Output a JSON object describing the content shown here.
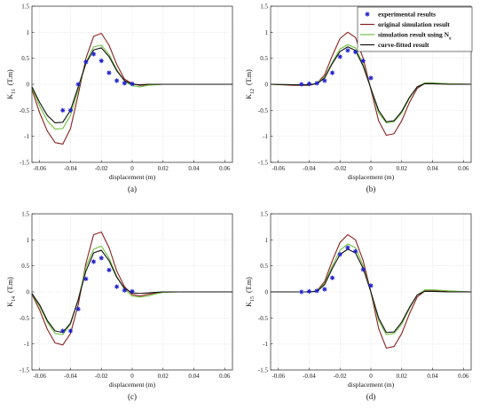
{
  "legend": {
    "entries": [
      {
        "label": "experimental results",
        "sub": "",
        "color": "#1f1fcf",
        "kind": "marker"
      },
      {
        "label": "original simulation result",
        "sub": "",
        "color": "#8b2020",
        "kind": "line"
      },
      {
        "label": "simulation result using N",
        "sub": "e",
        "color": "#6fbf3f",
        "kind": "line"
      },
      {
        "label": "curve-fitted result",
        "sub": "",
        "color": "#101010",
        "kind": "line"
      }
    ]
  },
  "chart_data": [
    {
      "type": "line",
      "panel_label": "(a)",
      "ylabel": "K",
      "ylabel_sub": "11",
      "ylabel_unit": "(T.m)",
      "xlabel": "displacement (m)",
      "xlim": [
        -0.065,
        0.065
      ],
      "ylim": [
        -1.5,
        1.5
      ],
      "xticks": [
        -0.06,
        -0.04,
        -0.02,
        0,
        0.02,
        0.04,
        0.06
      ],
      "yticks": [
        -1.5,
        -1,
        -0.5,
        0,
        0.5,
        1,
        1.5
      ],
      "xtick_labels": [
        "-0.06",
        "-0.04",
        "-0.02",
        "0",
        "0.02",
        "0.04",
        "0.06"
      ],
      "ytick_labels": [
        "-1.5",
        "-1",
        "-0.5",
        "0",
        "0.5",
        "1",
        "1.5"
      ],
      "grid": true,
      "experimental": {
        "x": [
          -0.045,
          -0.04,
          -0.035,
          -0.03,
          -0.025,
          -0.02,
          -0.015,
          -0.01,
          -0.005,
          0
        ],
        "y": [
          -0.5,
          -0.5,
          0,
          0.43,
          0.58,
          0.45,
          0.22,
          0.07,
          0.02,
          0.01
        ]
      },
      "series": [
        {
          "color": "#8b2020",
          "x": [
            -0.065,
            -0.06,
            -0.055,
            -0.05,
            -0.045,
            -0.04,
            -0.035,
            -0.03,
            -0.025,
            -0.02,
            -0.015,
            -0.01,
            -0.005,
            0,
            0.005,
            0.01,
            0.02,
            0.03,
            0.04,
            0.05,
            0.065
          ],
          "y": [
            -0.1,
            -0.55,
            -0.9,
            -1.12,
            -1.15,
            -0.85,
            -0.2,
            0.5,
            0.92,
            0.98,
            0.75,
            0.38,
            0.1,
            0.01,
            -0.02,
            -0.01,
            0,
            0,
            0,
            0,
            0
          ]
        },
        {
          "color": "#6fbf3f",
          "x": [
            -0.065,
            -0.06,
            -0.055,
            -0.05,
            -0.045,
            -0.04,
            -0.035,
            -0.03,
            -0.025,
            -0.02,
            -0.015,
            -0.01,
            -0.005,
            0,
            0.005,
            0.01,
            0.02,
            0.03,
            0.04,
            0.05,
            0.065
          ],
          "y": [
            -0.07,
            -0.42,
            -0.7,
            -0.86,
            -0.85,
            -0.6,
            -0.1,
            0.42,
            0.72,
            0.75,
            0.57,
            0.28,
            0.06,
            -0.03,
            -0.05,
            -0.02,
            0,
            0,
            0,
            0,
            0
          ]
        },
        {
          "color": "#101010",
          "x": [
            -0.065,
            -0.06,
            -0.055,
            -0.05,
            -0.045,
            -0.04,
            -0.035,
            -0.03,
            -0.025,
            -0.02,
            -0.015,
            -0.01,
            -0.005,
            0,
            0.005,
            0.01,
            0.02,
            0.03,
            0.04,
            0.05,
            0.065
          ],
          "y": [
            -0.05,
            -0.35,
            -0.6,
            -0.74,
            -0.73,
            -0.5,
            -0.05,
            0.4,
            0.66,
            0.7,
            0.53,
            0.26,
            0.07,
            0.0,
            -0.01,
            0,
            0,
            0,
            0,
            0,
            0
          ]
        }
      ]
    },
    {
      "type": "line",
      "panel_label": "(b)",
      "ylabel": "K",
      "ylabel_sub": "12",
      "ylabel_unit": "(T.m)",
      "xlabel": "displacement (m)",
      "xlim": [
        -0.065,
        0.065
      ],
      "ylim": [
        -1.5,
        1.5
      ],
      "xticks": [
        -0.06,
        -0.04,
        -0.02,
        0,
        0.02,
        0.04,
        0.06
      ],
      "yticks": [
        -1.5,
        -1,
        -0.5,
        0,
        0.5,
        1,
        1.5
      ],
      "xtick_labels": [
        "-0.06",
        "-0.04",
        "-0.02",
        "0",
        "0.02",
        "0.04",
        "0.06"
      ],
      "ytick_labels": [
        "-1.5",
        "-1",
        "-0.5",
        "0",
        "0.5",
        "1",
        "1.5"
      ],
      "grid": true,
      "experimental": {
        "x": [
          -0.045,
          -0.04,
          -0.035,
          -0.03,
          -0.025,
          -0.02,
          -0.015,
          -0.01,
          -0.005,
          0
        ],
        "y": [
          0,
          0.01,
          0.02,
          0.07,
          0.22,
          0.53,
          0.65,
          0.62,
          0.45,
          0.12
        ]
      },
      "series": [
        {
          "color": "#8b2020",
          "x": [
            -0.065,
            -0.05,
            -0.04,
            -0.035,
            -0.03,
            -0.025,
            -0.02,
            -0.015,
            -0.01,
            -0.005,
            0,
            0.005,
            0.01,
            0.015,
            0.02,
            0.025,
            0.03,
            0.035,
            0.04,
            0.05,
            0.065
          ],
          "y": [
            0,
            -0.02,
            -0.02,
            0.02,
            0.18,
            0.55,
            0.88,
            1.0,
            0.9,
            0.5,
            -0.1,
            -0.7,
            -0.98,
            -0.95,
            -0.7,
            -0.35,
            -0.08,
            0.02,
            0.02,
            0.01,
            0
          ]
        },
        {
          "color": "#6fbf3f",
          "x": [
            -0.065,
            -0.05,
            -0.04,
            -0.035,
            -0.03,
            -0.025,
            -0.02,
            -0.015,
            -0.01,
            -0.005,
            0,
            0.005,
            0.01,
            0.015,
            0.02,
            0.025,
            0.03,
            0.035,
            0.04,
            0.05,
            0.065
          ],
          "y": [
            0,
            -0.01,
            -0.01,
            0.02,
            0.14,
            0.42,
            0.68,
            0.76,
            0.7,
            0.38,
            -0.08,
            -0.55,
            -0.74,
            -0.72,
            -0.55,
            -0.27,
            -0.05,
            0.03,
            0.03,
            0.01,
            0
          ]
        },
        {
          "color": "#101010",
          "x": [
            -0.065,
            -0.05,
            -0.04,
            -0.035,
            -0.03,
            -0.025,
            -0.02,
            -0.015,
            -0.01,
            -0.005,
            0,
            0.005,
            0.01,
            0.015,
            0.02,
            0.025,
            0.03,
            0.035,
            0.04,
            0.05,
            0.065
          ],
          "y": [
            0,
            -0.01,
            -0.01,
            0.01,
            0.12,
            0.4,
            0.63,
            0.72,
            0.65,
            0.35,
            -0.08,
            -0.5,
            -0.72,
            -0.7,
            -0.52,
            -0.25,
            -0.05,
            0.01,
            0.01,
            0,
            0
          ]
        }
      ]
    },
    {
      "type": "line",
      "panel_label": "(c)",
      "ylabel": "K",
      "ylabel_sub": "14",
      "ylabel_unit": "(T.m)",
      "xlabel": "displacement (m)",
      "xlim": [
        -0.065,
        0.065
      ],
      "ylim": [
        -1.5,
        1.5
      ],
      "xticks": [
        -0.06,
        -0.04,
        -0.02,
        0,
        0.02,
        0.04,
        0.06
      ],
      "yticks": [
        -1.5,
        -1,
        -0.5,
        0,
        0.5,
        1,
        1.5
      ],
      "xtick_labels": [
        "-0.06",
        "-0.04",
        "-0.02",
        "0",
        "0.02",
        "0.04",
        "0.06"
      ],
      "ytick_labels": [
        "-1.5",
        "-1",
        "-0.5",
        "0",
        "0.5",
        "1",
        "1.5"
      ],
      "grid": true,
      "experimental": {
        "x": [
          -0.045,
          -0.04,
          -0.035,
          -0.03,
          -0.025,
          -0.02,
          -0.015,
          -0.01,
          -0.005,
          0
        ],
        "y": [
          -0.75,
          -0.75,
          -0.33,
          0.25,
          0.58,
          0.65,
          0.42,
          0.1,
          0.03,
          0.01
        ]
      },
      "series": [
        {
          "color": "#8b2020",
          "x": [
            -0.065,
            -0.06,
            -0.055,
            -0.05,
            -0.045,
            -0.04,
            -0.035,
            -0.03,
            -0.025,
            -0.02,
            -0.015,
            -0.01,
            -0.005,
            0,
            0.005,
            0.01,
            0.015,
            0.02,
            0.03,
            0.04,
            0.065
          ],
          "y": [
            -0.05,
            -0.35,
            -0.72,
            -0.98,
            -1.02,
            -0.8,
            -0.25,
            0.55,
            1.1,
            1.15,
            0.85,
            0.4,
            0.1,
            -0.05,
            -0.08,
            -0.05,
            -0.02,
            0,
            0,
            0,
            0
          ]
        },
        {
          "color": "#6fbf3f",
          "x": [
            -0.065,
            -0.06,
            -0.055,
            -0.05,
            -0.045,
            -0.04,
            -0.035,
            -0.03,
            -0.025,
            -0.02,
            -0.015,
            -0.01,
            -0.005,
            0,
            0.005,
            0.01,
            0.015,
            0.02,
            0.03,
            0.04,
            0.065
          ],
          "y": [
            -0.04,
            -0.28,
            -0.58,
            -0.8,
            -0.82,
            -0.62,
            -0.15,
            0.48,
            0.82,
            0.88,
            0.65,
            0.3,
            0.05,
            -0.08,
            -0.1,
            -0.08,
            -0.04,
            -0.01,
            0,
            0,
            0
          ]
        },
        {
          "color": "#101010",
          "x": [
            -0.065,
            -0.06,
            -0.055,
            -0.05,
            -0.045,
            -0.04,
            -0.035,
            -0.03,
            -0.025,
            -0.02,
            -0.015,
            -0.01,
            -0.005,
            0,
            0.005,
            0.01,
            0.015,
            0.02,
            0.03,
            0.04,
            0.065
          ],
          "y": [
            -0.03,
            -0.25,
            -0.55,
            -0.75,
            -0.78,
            -0.6,
            -0.15,
            0.4,
            0.75,
            0.8,
            0.6,
            0.28,
            0.07,
            -0.02,
            -0.03,
            -0.02,
            -0.01,
            0,
            0,
            0,
            0
          ]
        }
      ]
    },
    {
      "type": "line",
      "panel_label": "(d)",
      "ylabel": "K",
      "ylabel_sub": "15",
      "ylabel_unit": "(T.m)",
      "xlabel": "displacement (m)",
      "xlim": [
        -0.065,
        0.065
      ],
      "ylim": [
        -1.5,
        1.5
      ],
      "xticks": [
        -0.06,
        -0.04,
        -0.02,
        0,
        0.02,
        0.04,
        0.06
      ],
      "yticks": [
        -1.5,
        -1,
        -0.5,
        0,
        0.5,
        1,
        1.5
      ],
      "xtick_labels": [
        "-0.06",
        "-0.04",
        "-0.02",
        "0",
        "0.02",
        "0.04",
        "0.06"
      ],
      "ytick_labels": [
        "-1.5",
        "-1",
        "-0.5",
        "0",
        "0.5",
        "1",
        "1.5"
      ],
      "grid": true,
      "experimental": {
        "x": [
          -0.045,
          -0.04,
          -0.035,
          -0.03,
          -0.025,
          -0.02,
          -0.015,
          -0.01,
          -0.005,
          0
        ],
        "y": [
          0,
          0.01,
          0.02,
          0.05,
          0.27,
          0.72,
          0.85,
          0.78,
          0.43,
          0.12
        ]
      },
      "series": [
        {
          "color": "#8b2020",
          "x": [
            -0.065,
            -0.05,
            -0.04,
            -0.035,
            -0.03,
            -0.025,
            -0.02,
            -0.015,
            -0.01,
            -0.005,
            0,
            0.005,
            0.01,
            0.015,
            0.02,
            0.025,
            0.03,
            0.035,
            0.04,
            0.05,
            0.065
          ],
          "y": [
            0,
            0,
            0,
            0.02,
            0.2,
            0.6,
            0.95,
            1.1,
            1.0,
            0.6,
            0,
            -0.7,
            -1.08,
            -1.05,
            -0.8,
            -0.42,
            -0.1,
            0.02,
            0.02,
            0.01,
            0
          ]
        },
        {
          "color": "#6fbf3f",
          "x": [
            -0.065,
            -0.05,
            -0.04,
            -0.035,
            -0.03,
            -0.025,
            -0.02,
            -0.015,
            -0.01,
            -0.005,
            0,
            0.005,
            0.01,
            0.015,
            0.02,
            0.025,
            0.03,
            0.035,
            0.04,
            0.05,
            0.065
          ],
          "y": [
            0,
            0,
            0,
            0.02,
            0.16,
            0.5,
            0.8,
            0.92,
            0.85,
            0.5,
            0,
            -0.55,
            -0.82,
            -0.8,
            -0.62,
            -0.32,
            -0.06,
            0.04,
            0.04,
            0.02,
            0
          ]
        },
        {
          "color": "#101010",
          "x": [
            -0.065,
            -0.05,
            -0.04,
            -0.035,
            -0.03,
            -0.025,
            -0.02,
            -0.015,
            -0.01,
            -0.005,
            0,
            0.005,
            0.01,
            0.015,
            0.02,
            0.025,
            0.03,
            0.035,
            0.04,
            0.05,
            0.065
          ],
          "y": [
            0,
            0,
            0,
            0.01,
            0.14,
            0.45,
            0.72,
            0.82,
            0.75,
            0.45,
            0,
            -0.5,
            -0.78,
            -0.77,
            -0.58,
            -0.3,
            -0.06,
            0.01,
            0.01,
            0,
            0
          ]
        }
      ]
    }
  ]
}
